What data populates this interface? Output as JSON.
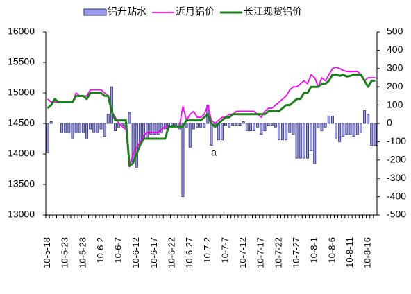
{
  "chart_data": {
    "type": "bar_line",
    "categories": [
      "10-5-18",
      null,
      null,
      null,
      null,
      "10-5-23",
      null,
      null,
      null,
      null,
      "10-5-28",
      null,
      null,
      null,
      null,
      "10-6-2",
      null,
      null,
      null,
      null,
      "10-6-7",
      null,
      null,
      null,
      null,
      "10-6-12",
      null,
      null,
      null,
      null,
      "10-6-17",
      null,
      null,
      null,
      null,
      "10-6-22",
      null,
      null,
      null,
      null,
      "10-6-27",
      null,
      null,
      null,
      null,
      "10-7-2",
      null,
      null,
      null,
      null,
      "10-7-7",
      null,
      null,
      null,
      null,
      "10-7-12",
      null,
      null,
      null,
      null,
      "10-7-17",
      null,
      null,
      null,
      null,
      "10-7-22",
      null,
      null,
      null,
      null,
      "10-7-27",
      null,
      null,
      null,
      null,
      "10-8-1",
      null,
      null,
      null,
      null,
      "10-8-6",
      null,
      null,
      null,
      null,
      "10-8-11",
      null,
      null,
      null,
      null,
      "10-8-16",
      null,
      null
    ],
    "series": [
      {
        "name": "铝升贴水",
        "kind": "bar",
        "axis": "y2",
        "color": "#9a9aee",
        "values": [
          -160,
          10,
          0,
          0,
          -50,
          -50,
          -50,
          -80,
          -50,
          -50,
          -50,
          -80,
          -30,
          -50,
          -50,
          -30,
          -70,
          50,
          200,
          -40,
          -20,
          -10,
          -30,
          60,
          -210,
          -240,
          -100,
          -80,
          -80,
          -60,
          -60,
          -60,
          -50,
          -30,
          -10,
          -10,
          -10,
          -30,
          -400,
          -20,
          -130,
          -30,
          -20,
          -20,
          -20,
          100,
          -120,
          -20,
          -90,
          -90,
          -10,
          -20,
          -10,
          -10,
          -10,
          10,
          -40,
          -40,
          -40,
          -20,
          -60,
          -40,
          -10,
          -10,
          -20,
          -90,
          -90,
          -90,
          -50,
          -60,
          -190,
          -190,
          -190,
          -190,
          -150,
          -220,
          -20,
          -40,
          -20,
          40,
          40,
          -80,
          -100,
          -70,
          -60,
          -60,
          -70,
          -60,
          -50,
          70,
          50,
          -120,
          -120
        ]
      },
      {
        "name": "近月铝价",
        "kind": "line",
        "color": "#ff00ff",
        "values": [
          14900,
          14850,
          14850,
          14850,
          14850,
          14850,
          14850,
          14850,
          15000,
          14950,
          14950,
          14950,
          15050,
          15050,
          15050,
          15050,
          15000,
          14950,
          14700,
          14600,
          14500,
          14450,
          14400,
          13800,
          14000,
          14100,
          14200,
          14300,
          14350,
          14350,
          14350,
          14350,
          14400,
          14450,
          14450,
          14450,
          14450,
          14450,
          14780,
          14550,
          14650,
          14700,
          14600,
          14600,
          14650,
          14800,
          14550,
          14500,
          14550,
          14600,
          14600,
          14650,
          14650,
          14700,
          14700,
          14700,
          14700,
          14700,
          14700,
          14650,
          14600,
          14700,
          14750,
          14750,
          14800,
          14850,
          14900,
          14950,
          15050,
          15100,
          15100,
          15150,
          15200,
          15150,
          15300,
          15250,
          15100,
          15250,
          15200,
          15300,
          15400,
          15420,
          15400,
          15370,
          15350,
          15350,
          15350,
          15350,
          15300,
          15200,
          15250,
          15250,
          15250
        ]
      },
      {
        "name": "长江现货铝价",
        "kind": "line",
        "color": "#1a801a",
        "values": [
          14750,
          14800,
          14900,
          14850,
          14850,
          14850,
          14850,
          14850,
          14950,
          14950,
          14950,
          14900,
          15000,
          15000,
          15000,
          15000,
          14950,
          14950,
          14700,
          14550,
          14550,
          14550,
          14550,
          13800,
          13850,
          14000,
          14150,
          14250,
          14250,
          14250,
          14250,
          14250,
          14250,
          14250,
          14450,
          14450,
          14450,
          14450,
          14450,
          14550,
          14550,
          14550,
          14550,
          14550,
          14600,
          14650,
          14500,
          14450,
          14500,
          14550,
          14600,
          14600,
          14650,
          14650,
          14650,
          14650,
          14650,
          14650,
          14650,
          14650,
          14650,
          14650,
          14700,
          14700,
          14700,
          14700,
          14750,
          14800,
          14800,
          14850,
          14900,
          14900,
          15000,
          15000,
          15100,
          15100,
          15100,
          15150,
          15150,
          15200,
          15300,
          15300,
          15280,
          15300,
          15270,
          15280,
          15300,
          15300,
          15300,
          15200,
          15100,
          15200,
          15200
        ]
      }
    ],
    "annotation": "a",
    "ylim": [
      13000,
      16000
    ],
    "yticks": [
      13000,
      13500,
      14000,
      14500,
      15000,
      15500,
      16000
    ],
    "y2lim": [
      -500,
      500
    ],
    "y2ticks": [
      -500,
      -400,
      -300,
      -200,
      -100,
      0,
      100,
      200,
      300,
      400,
      500
    ]
  }
}
